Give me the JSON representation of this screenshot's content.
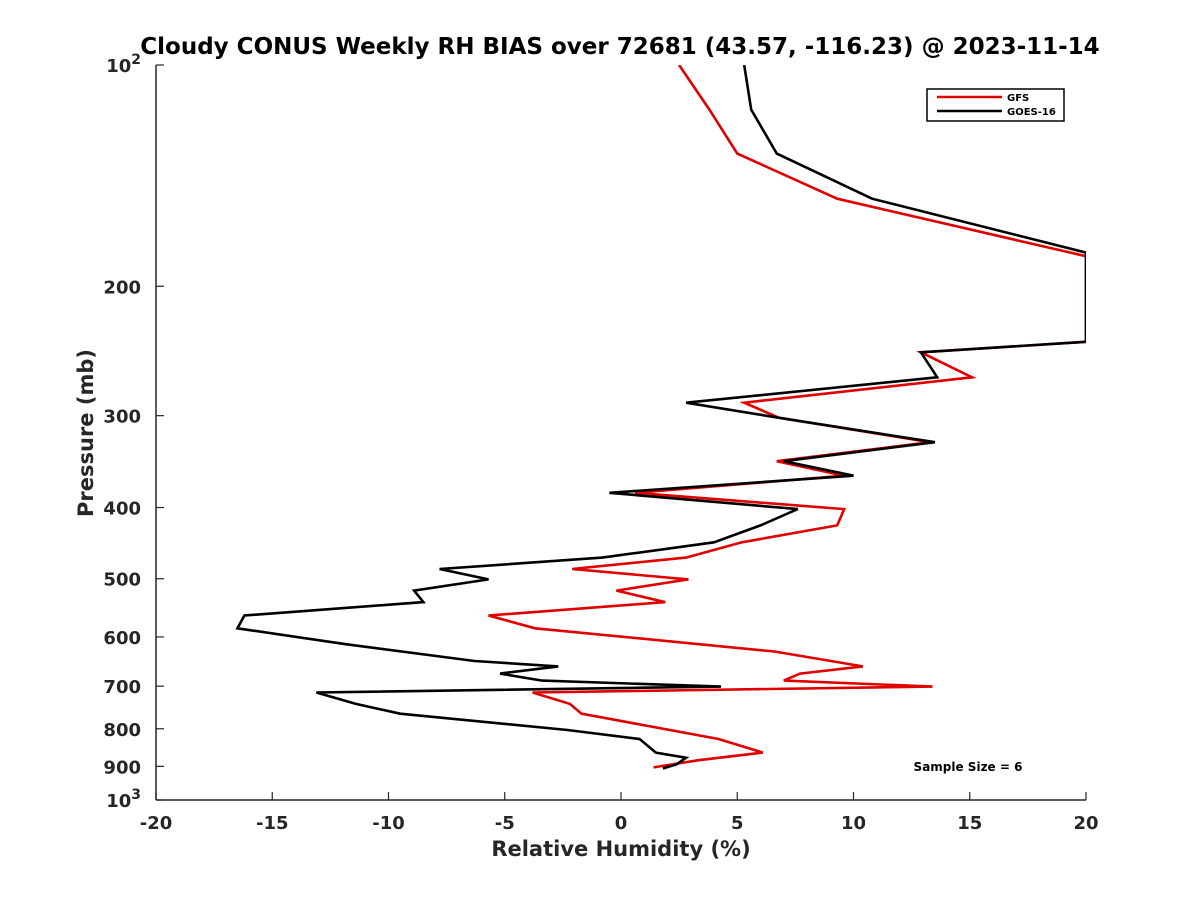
{
  "chart_data": {
    "type": "line",
    "title": "Cloudy CONUS Weekly RH BIAS over 72681 (43.57, -116.23) @ 2023-11-14",
    "xlabel": "Relative Humidity (%)",
    "ylabel": "Pressure (mb)",
    "xlim": [
      -20,
      20
    ],
    "ylim": [
      100,
      1000
    ],
    "y_scale": "log",
    "y_reversed": true,
    "grid": false,
    "legend_position": "top-right",
    "x_ticks": [
      "-20",
      "-15",
      "-10",
      "-5",
      "0",
      "5",
      "10",
      "15",
      "20"
    ],
    "y_ticks": [
      {
        "value": 100,
        "base": "10",
        "exp": "2"
      },
      {
        "value": 200,
        "label": "200"
      },
      {
        "value": 300,
        "label": "300"
      },
      {
        "value": 400,
        "label": "400"
      },
      {
        "value": 500,
        "label": "500"
      },
      {
        "value": 600,
        "label": "600"
      },
      {
        "value": 700,
        "label": "700"
      },
      {
        "value": 800,
        "label": "800"
      },
      {
        "value": 900,
        "label": "900"
      },
      {
        "value": 1000,
        "base": "10",
        "exp": "3"
      }
    ],
    "annotation": "Sample Size = 6",
    "series": [
      {
        "name": "GFS",
        "color": "#e00000",
        "points": [
          [
            2.5,
            100
          ],
          [
            3.8,
            115
          ],
          [
            5.0,
            132
          ],
          [
            9.3,
            152
          ],
          [
            20.0,
            182
          ],
          [
            20.0,
            238
          ],
          [
            12.9,
            246
          ],
          [
            15.1,
            266
          ],
          [
            5.3,
            288
          ],
          [
            6.8,
            302
          ],
          [
            13.3,
            326
          ],
          [
            6.7,
            346
          ],
          [
            9.6,
            362
          ],
          [
            0.6,
            382
          ],
          [
            9.6,
            402
          ],
          [
            9.3,
            423
          ],
          [
            5.2,
            446
          ],
          [
            2.8,
            468
          ],
          [
            -2.1,
            485
          ],
          [
            2.9,
            501
          ],
          [
            -0.2,
            519
          ],
          [
            1.9,
            538
          ],
          [
            -5.7,
            561
          ],
          [
            -3.7,
            584
          ],
          [
            6.6,
            628
          ],
          [
            10.4,
            658
          ],
          [
            7.7,
            673
          ],
          [
            7.0,
            688
          ],
          [
            13.4,
            701
          ],
          [
            -3.8,
            714
          ],
          [
            -2.2,
            740
          ],
          [
            -1.7,
            763
          ],
          [
            4.2,
            826
          ],
          [
            6.1,
            862
          ],
          [
            3.3,
            883
          ],
          [
            1.4,
            903
          ]
        ]
      },
      {
        "name": "GOES-16",
        "color": "#000000",
        "points": [
          [
            5.3,
            100
          ],
          [
            5.6,
            115
          ],
          [
            6.7,
            132
          ],
          [
            10.8,
            152
          ],
          [
            20.0,
            180
          ],
          [
            20.0,
            238
          ],
          [
            12.9,
            246
          ],
          [
            13.6,
            266
          ],
          [
            2.8,
            288
          ],
          [
            6.8,
            302
          ],
          [
            13.5,
            326
          ],
          [
            7.0,
            346
          ],
          [
            10.0,
            362
          ],
          [
            -0.5,
            382
          ],
          [
            7.6,
            402
          ],
          [
            6.0,
            423
          ],
          [
            4.0,
            446
          ],
          [
            -0.8,
            468
          ],
          [
            -7.8,
            485
          ],
          [
            -5.7,
            501
          ],
          [
            -8.9,
            519
          ],
          [
            -8.5,
            538
          ],
          [
            -16.2,
            561
          ],
          [
            -16.5,
            584
          ],
          [
            -11.8,
            614
          ],
          [
            -6.3,
            647
          ],
          [
            -2.7,
            658
          ],
          [
            -5.2,
            673
          ],
          [
            -3.4,
            688
          ],
          [
            4.3,
            701
          ],
          [
            -13.1,
            714
          ],
          [
            -11.4,
            740
          ],
          [
            -9.5,
            763
          ],
          [
            -2.3,
            803
          ],
          [
            0.8,
            826
          ],
          [
            1.5,
            862
          ],
          [
            2.8,
            876
          ],
          [
            2.4,
            894
          ],
          [
            1.8,
            906
          ]
        ]
      }
    ]
  }
}
